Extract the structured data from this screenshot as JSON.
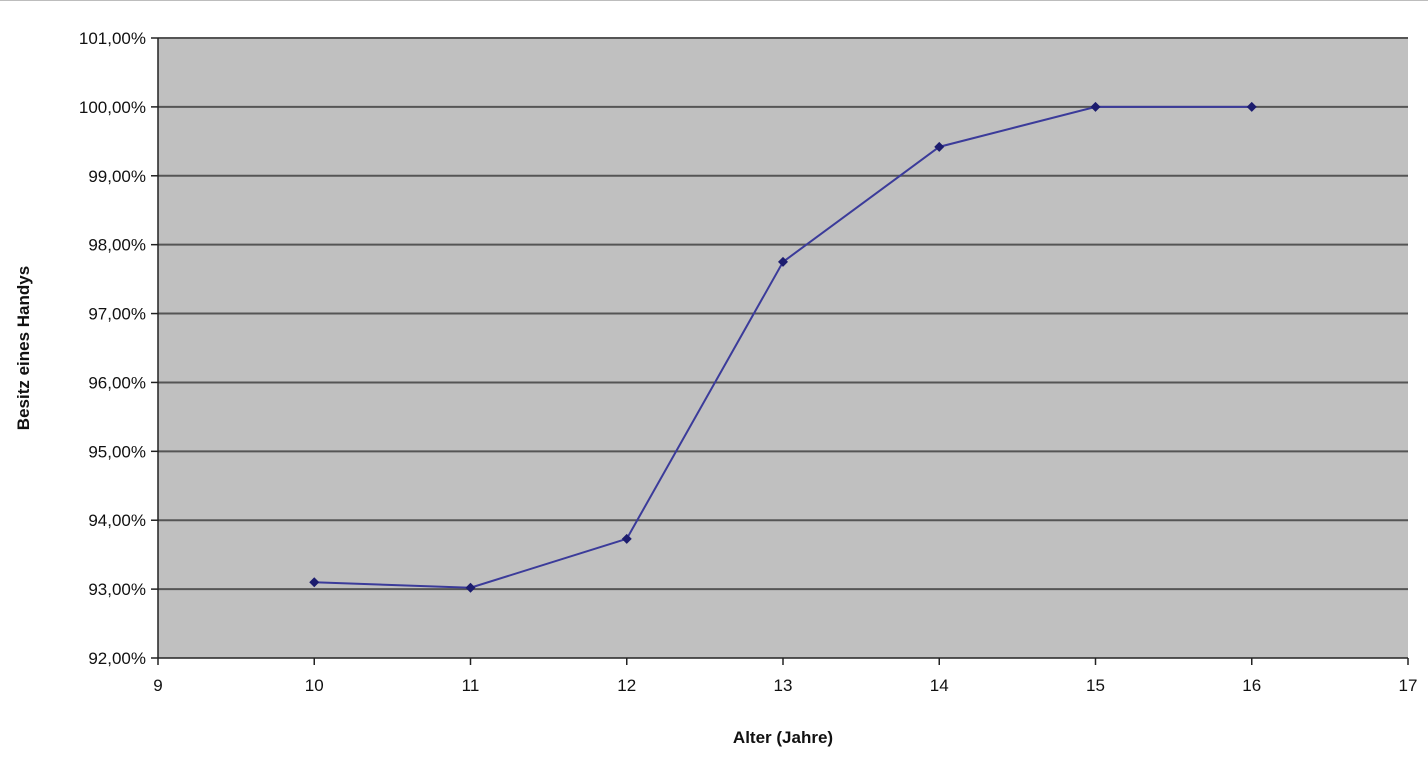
{
  "chart_data": {
    "type": "line",
    "title": "",
    "xlabel": "Alter (Jahre)",
    "ylabel": "Besitz eines Handys",
    "xlim": [
      9,
      17
    ],
    "ylim": [
      92,
      101
    ],
    "x_ticks": [
      9,
      10,
      11,
      12,
      13,
      14,
      15,
      16,
      17
    ],
    "x_tick_labels": [
      "9",
      "10",
      "11",
      "12",
      "13",
      "14",
      "15",
      "16",
      "17"
    ],
    "y_ticks": [
      92,
      93,
      94,
      95,
      96,
      97,
      98,
      99,
      100,
      101
    ],
    "y_tick_labels": [
      "92,00%",
      "93,00%",
      "94,00%",
      "95,00%",
      "96,00%",
      "97,00%",
      "98,00%",
      "99,00%",
      "100,00%",
      "101,00%"
    ],
    "grid": true,
    "legend": "none",
    "series": [
      {
        "x": [
          10,
          11,
          12,
          13,
          14,
          15,
          16
        ],
        "y": [
          93.1,
          93.02,
          93.73,
          97.75,
          99.42,
          100.0,
          100.0
        ]
      }
    ],
    "colors": {
      "plot_background": "#c0c0c0",
      "gridline": "#555555",
      "line": "#3b3b9a",
      "marker": "#1c1c6e"
    }
  }
}
